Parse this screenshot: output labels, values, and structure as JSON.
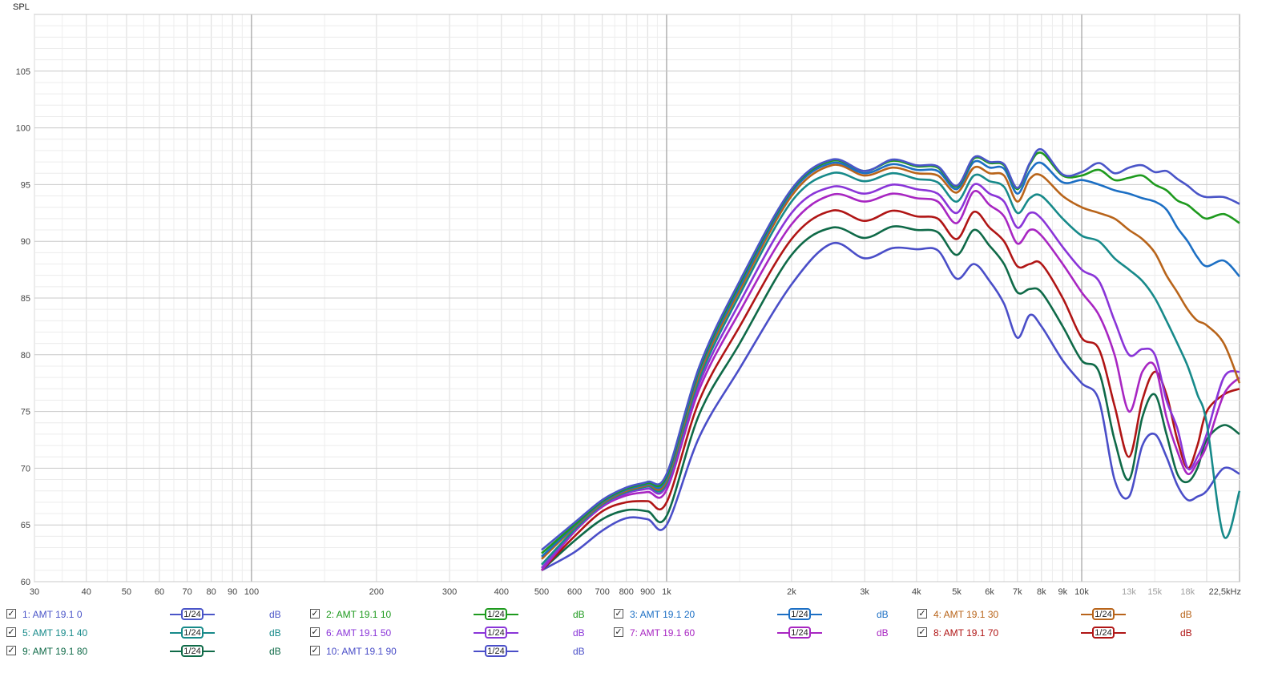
{
  "chart_data": {
    "type": "line",
    "ylabel": "SPL",
    "xscale": "log",
    "xlim": [
      30,
      24000
    ],
    "ylim": [
      60,
      110
    ],
    "grid": true,
    "ytick_values": [
      60,
      65,
      70,
      75,
      80,
      85,
      90,
      95,
      100,
      105
    ],
    "ytick_labels": [
      "60",
      "65",
      "70",
      "75",
      "80",
      "85",
      "90",
      "95",
      "100",
      "105"
    ],
    "xtick_values": [
      30,
      40,
      50,
      60,
      70,
      80,
      90,
      100,
      200,
      300,
      400,
      500,
      600,
      700,
      800,
      900,
      1000,
      2000,
      3000,
      4000,
      5000,
      6000,
      7000,
      8000,
      9000,
      10000,
      13000,
      15000,
      18000,
      22500
    ],
    "xtick_labels": [
      "30",
      "40",
      "50",
      "60",
      "70",
      "80",
      "90",
      "100",
      "200",
      "300",
      "400",
      "500",
      "600",
      "700",
      "800",
      "900",
      "1k",
      "2k",
      "3k",
      "4k",
      "5k",
      "6k",
      "7k",
      "8k",
      "9k",
      "10k",
      "13k",
      "15k",
      "18k",
      "22,5kHz"
    ],
    "x": [
      500,
      600,
      700,
      800,
      900,
      1000,
      1200,
      1500,
      2000,
      2500,
      3000,
      3500,
      4000,
      4500,
      5000,
      5500,
      6000,
      6500,
      7000,
      7500,
      8000,
      9000,
      10000,
      11000,
      12000,
      13000,
      14000,
      15000,
      16000,
      17000,
      18000,
      19000,
      20000,
      22000,
      24000
    ],
    "series": [
      {
        "name": "1: AMT 19.1 0",
        "color": "#4a55c8",
        "values": [
          62.8,
          65.2,
          67.2,
          68.3,
          68.8,
          69.5,
          79.0,
          86.5,
          94.6,
          97.2,
          96.2,
          97.2,
          96.7,
          96.6,
          94.9,
          97.4,
          97.0,
          96.8,
          94.7,
          96.9,
          98.1,
          95.9,
          96.1,
          96.9,
          96.0,
          96.5,
          96.7,
          96.1,
          96.2,
          95.5,
          94.9,
          94.2,
          93.9,
          93.9,
          93.3
        ]
      },
      {
        "name": "2: AMT 19.1 10",
        "color": "#1e9a1e",
        "values": [
          62.5,
          65.0,
          67.1,
          68.2,
          68.7,
          69.3,
          78.8,
          86.3,
          94.5,
          97.1,
          96.2,
          97.1,
          96.6,
          96.5,
          94.8,
          97.3,
          96.9,
          96.7,
          94.6,
          96.8,
          97.8,
          95.8,
          95.8,
          96.3,
          95.4,
          95.6,
          95.8,
          95.0,
          94.5,
          93.6,
          93.2,
          92.5,
          92.0,
          92.4,
          91.6
        ]
      },
      {
        "name": "3: AMT 19.1 20",
        "color": "#1c6fc4",
        "values": [
          62.2,
          64.9,
          67.0,
          68.1,
          68.6,
          69.1,
          78.6,
          86.0,
          94.3,
          96.9,
          96.0,
          96.8,
          96.3,
          96.2,
          94.6,
          97.0,
          96.5,
          96.4,
          94.2,
          96.2,
          96.9,
          95.2,
          95.4,
          95.0,
          94.5,
          94.2,
          93.8,
          93.5,
          92.8,
          91.2,
          90.0,
          88.6,
          87.8,
          88.3,
          86.9
        ]
      },
      {
        "name": "4: AMT 19.1 30",
        "color": "#b8641a",
        "values": [
          62.0,
          64.8,
          66.9,
          68.0,
          68.5,
          68.9,
          78.3,
          85.7,
          94.0,
          96.7,
          95.8,
          96.5,
          96.0,
          95.8,
          94.3,
          96.5,
          96.0,
          95.8,
          93.5,
          95.5,
          95.8,
          94.0,
          93.0,
          92.5,
          92.0,
          91.0,
          90.2,
          89.0,
          87.0,
          85.5,
          84.0,
          83.0,
          82.6,
          81.0,
          77.5
        ]
      },
      {
        "name": "5: AMT 19.1 40",
        "color": "#178a8a",
        "values": [
          61.5,
          64.6,
          66.8,
          67.9,
          68.4,
          68.7,
          77.9,
          85.3,
          93.5,
          96.0,
          95.3,
          96.0,
          95.5,
          95.2,
          93.5,
          95.8,
          95.3,
          94.8,
          92.5,
          93.8,
          94.0,
          92.0,
          90.5,
          90.0,
          88.5,
          87.5,
          86.5,
          85.0,
          83.0,
          81.0,
          79.0,
          76.5,
          74.0,
          64.0,
          68.0
        ]
      },
      {
        "name": "6: AMT 19.1 50",
        "color": "#8a35d8",
        "values": [
          61.2,
          64.5,
          66.7,
          67.8,
          68.2,
          68.5,
          77.5,
          84.6,
          92.5,
          94.8,
          94.2,
          95.0,
          94.6,
          94.2,
          92.5,
          95.0,
          94.2,
          93.5,
          91.2,
          92.5,
          92.0,
          89.5,
          87.5,
          86.5,
          83.0,
          80.0,
          80.5,
          80.0,
          76.0,
          73.5,
          70.0,
          71.0,
          73.0,
          78.0,
          78.5
        ]
      },
      {
        "name": "7: AMT 19.1 60",
        "color": "#a826c2",
        "values": [
          61.0,
          64.4,
          66.6,
          67.6,
          67.9,
          68.1,
          77.0,
          83.8,
          91.5,
          94.1,
          93.5,
          94.2,
          93.8,
          93.5,
          91.6,
          94.4,
          93.2,
          92.2,
          89.8,
          91.0,
          90.5,
          88.0,
          85.5,
          83.5,
          80.0,
          75.0,
          78.5,
          79.0,
          74.5,
          71.5,
          69.5,
          70.5,
          72.0,
          76.5,
          78.0
        ]
      },
      {
        "name": "8: AMT 19.1 70",
        "color": "#b01515",
        "values": [
          61.0,
          64.0,
          66.2,
          67.0,
          67.1,
          67.0,
          76.0,
          82.5,
          90.2,
          92.7,
          91.8,
          92.7,
          92.2,
          92.0,
          90.2,
          92.6,
          91.2,
          90.0,
          87.8,
          88.0,
          88.0,
          85.0,
          81.5,
          80.5,
          75.5,
          71.0,
          76.0,
          78.5,
          76.5,
          72.5,
          70.0,
          72.0,
          75.0,
          76.5,
          77.0
        ]
      },
      {
        "name": "9: AMT 19.1 80",
        "color": "#0f6a48",
        "values": [
          61.0,
          63.6,
          65.5,
          66.3,
          66.2,
          65.8,
          74.8,
          81.0,
          88.8,
          91.2,
          90.3,
          91.3,
          91.0,
          90.8,
          88.8,
          91.0,
          89.6,
          88.0,
          85.5,
          85.8,
          85.5,
          82.5,
          79.5,
          78.5,
          72.5,
          69.0,
          74.5,
          76.5,
          73.0,
          69.5,
          68.8,
          70.0,
          72.5,
          73.8,
          73.0
        ]
      },
      {
        "name": "10: AMT 19.1 90",
        "color": "#4a4ec8",
        "values": [
          61.0,
          62.6,
          64.5,
          65.6,
          65.5,
          65.0,
          72.8,
          78.8,
          86.2,
          89.8,
          88.5,
          89.4,
          89.3,
          89.2,
          86.7,
          88.0,
          86.5,
          84.5,
          81.5,
          83.5,
          82.5,
          79.5,
          77.5,
          76.0,
          69.0,
          67.5,
          72.0,
          73.0,
          71.0,
          68.5,
          67.2,
          67.5,
          68.0,
          70.0,
          69.5
        ]
      }
    ]
  },
  "legend": {
    "smoothing_label": "1/24",
    "unit": "dB",
    "check_mark": "✓",
    "items": [
      {
        "name": "1: AMT 19.1 0",
        "color": "#4a55c8"
      },
      {
        "name": "2: AMT 19.1 10",
        "color": "#1e9a1e"
      },
      {
        "name": "3: AMT 19.1 20",
        "color": "#1c6fc4"
      },
      {
        "name": "4: AMT 19.1 30",
        "color": "#b8641a"
      },
      {
        "name": "5: AMT 19.1 40",
        "color": "#178a8a"
      },
      {
        "name": "6: AMT 19.1 50",
        "color": "#8a35d8"
      },
      {
        "name": "7: AMT 19.1 60",
        "color": "#a826c2"
      },
      {
        "name": "8: AMT 19.1 70",
        "color": "#b01515"
      },
      {
        "name": "9: AMT 19.1 80",
        "color": "#0f6a48"
      },
      {
        "name": "10: AMT 19.1 90",
        "color": "#4a4ec8"
      }
    ]
  }
}
